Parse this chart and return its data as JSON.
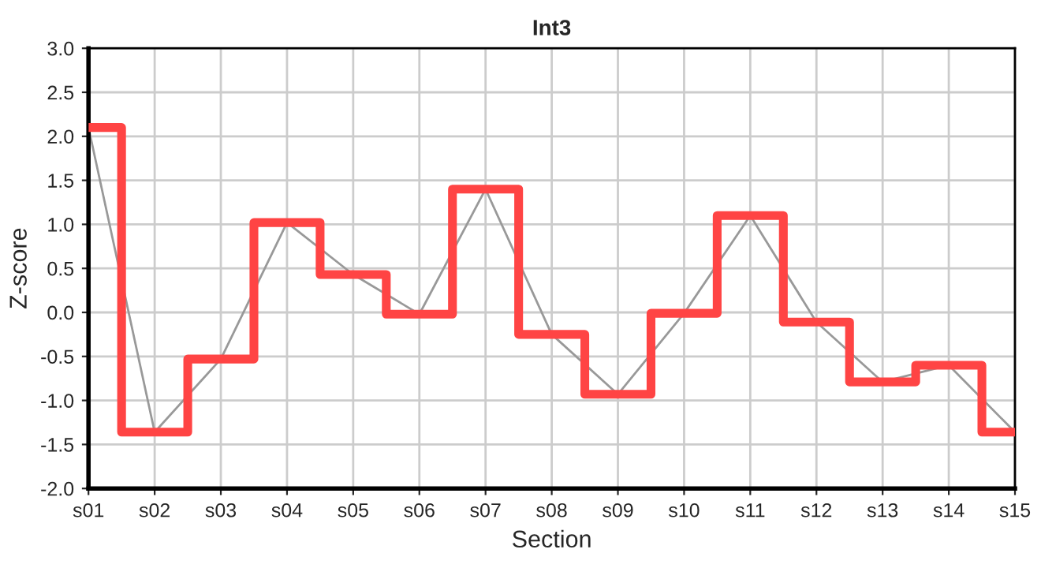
{
  "chart_data": {
    "type": "step",
    "title": "Int3",
    "xlabel": "Section",
    "ylabel": "Z-score",
    "categories": [
      "s01",
      "s02",
      "s03",
      "s04",
      "s05",
      "s06",
      "s07",
      "s08",
      "s09",
      "s10",
      "s11",
      "s12",
      "s13",
      "s14",
      "s15"
    ],
    "series": [
      {
        "type": "line",
        "color": "#999999",
        "values": [
          2.1,
          -1.36,
          -0.53,
          1.02,
          0.43,
          -0.02,
          1.4,
          -0.25,
          -0.93,
          -0.01,
          1.1,
          -0.11,
          -0.79,
          -0.6,
          -1.36
        ]
      },
      {
        "color": "#ff4444",
        "values": [
          2.1,
          -1.36,
          -0.53,
          1.02,
          0.43,
          -0.02,
          1.4,
          -0.25,
          -0.93,
          -0.01,
          1.1,
          -0.11,
          -0.79,
          -0.6,
          -1.36
        ]
      }
    ],
    "ylim": [
      -2.0,
      3.0
    ],
    "yticks": [
      {
        "value": -2.0,
        "label": "-2.0"
      },
      {
        "value": -1.5,
        "label": "-1.5"
      },
      {
        "value": -1.0,
        "label": "-1.0"
      },
      {
        "value": -0.5,
        "label": "-0.5"
      },
      {
        "value": 0.0,
        "label": "0.0"
      },
      {
        "value": 0.5,
        "label": "0.5"
      },
      {
        "value": 1.0,
        "label": "1.0"
      },
      {
        "value": 1.5,
        "label": "1.5"
      },
      {
        "value": 2.0,
        "label": "2.0"
      },
      {
        "value": 2.5,
        "label": "2.5"
      },
      {
        "value": 3.0,
        "label": "3.0"
      }
    ],
    "grid": true,
    "legend": false,
    "marker": "none"
  }
}
